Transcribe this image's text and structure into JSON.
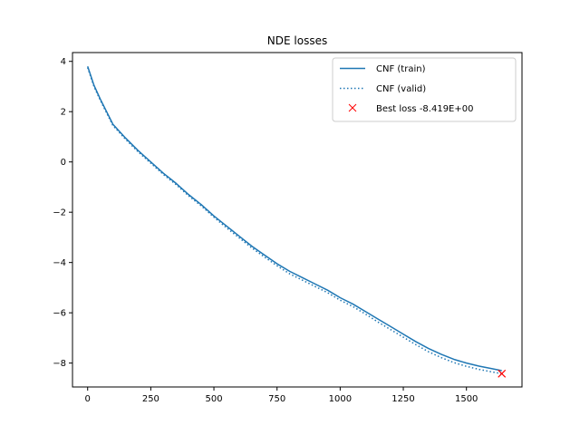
{
  "chart_data": {
    "type": "line",
    "title": "NDE losses",
    "xlabel": "",
    "ylabel": "",
    "xlim": [
      -60,
      1720
    ],
    "ylim": [
      -8.95,
      4.35
    ],
    "xticks": [
      0,
      250,
      500,
      750,
      1000,
      1250,
      1500
    ],
    "yticks": [
      4,
      2,
      0,
      -2,
      -4,
      -6,
      -8
    ],
    "grid": false,
    "legend_position": "top-right",
    "series": [
      {
        "name": "CNF (train)",
        "style": "solid",
        "color": "#1f77b4",
        "x": [
          0,
          25,
          50,
          100,
          150,
          200,
          250,
          300,
          350,
          400,
          450,
          500,
          550,
          600,
          650,
          700,
          750,
          800,
          850,
          900,
          950,
          1000,
          1050,
          1100,
          1150,
          1200,
          1250,
          1300,
          1350,
          1400,
          1450,
          1500,
          1550,
          1600,
          1640
        ],
        "y": [
          3.8,
          3.05,
          2.5,
          1.5,
          0.95,
          0.45,
          0.0,
          -0.45,
          -0.85,
          -1.3,
          -1.7,
          -2.15,
          -2.55,
          -2.95,
          -3.35,
          -3.7,
          -4.05,
          -4.35,
          -4.6,
          -4.85,
          -5.1,
          -5.4,
          -5.65,
          -5.95,
          -6.25,
          -6.55,
          -6.85,
          -7.15,
          -7.42,
          -7.65,
          -7.85,
          -8.0,
          -8.12,
          -8.22,
          -8.3
        ]
      },
      {
        "name": "CNF (valid)",
        "style": "dotted",
        "color": "#1f77b4",
        "x": [
          0,
          25,
          50,
          100,
          150,
          200,
          250,
          300,
          350,
          400,
          450,
          500,
          550,
          600,
          650,
          700,
          750,
          800,
          850,
          900,
          950,
          1000,
          1050,
          1100,
          1150,
          1200,
          1250,
          1300,
          1350,
          1400,
          1450,
          1500,
          1550,
          1600,
          1640
        ],
        "y": [
          3.75,
          3.0,
          2.45,
          1.45,
          0.9,
          0.4,
          -0.05,
          -0.5,
          -0.9,
          -1.35,
          -1.75,
          -2.2,
          -2.62,
          -3.02,
          -3.42,
          -3.78,
          -4.13,
          -4.45,
          -4.7,
          -4.95,
          -5.2,
          -5.5,
          -5.75,
          -6.05,
          -6.37,
          -6.67,
          -6.97,
          -7.27,
          -7.55,
          -7.78,
          -7.98,
          -8.13,
          -8.25,
          -8.35,
          -8.42
        ]
      }
    ],
    "markers": [
      {
        "name": "Best loss -8.419E+00",
        "symbol": "x",
        "color": "#ff0000",
        "x": 1640,
        "y": -8.419
      }
    ]
  }
}
